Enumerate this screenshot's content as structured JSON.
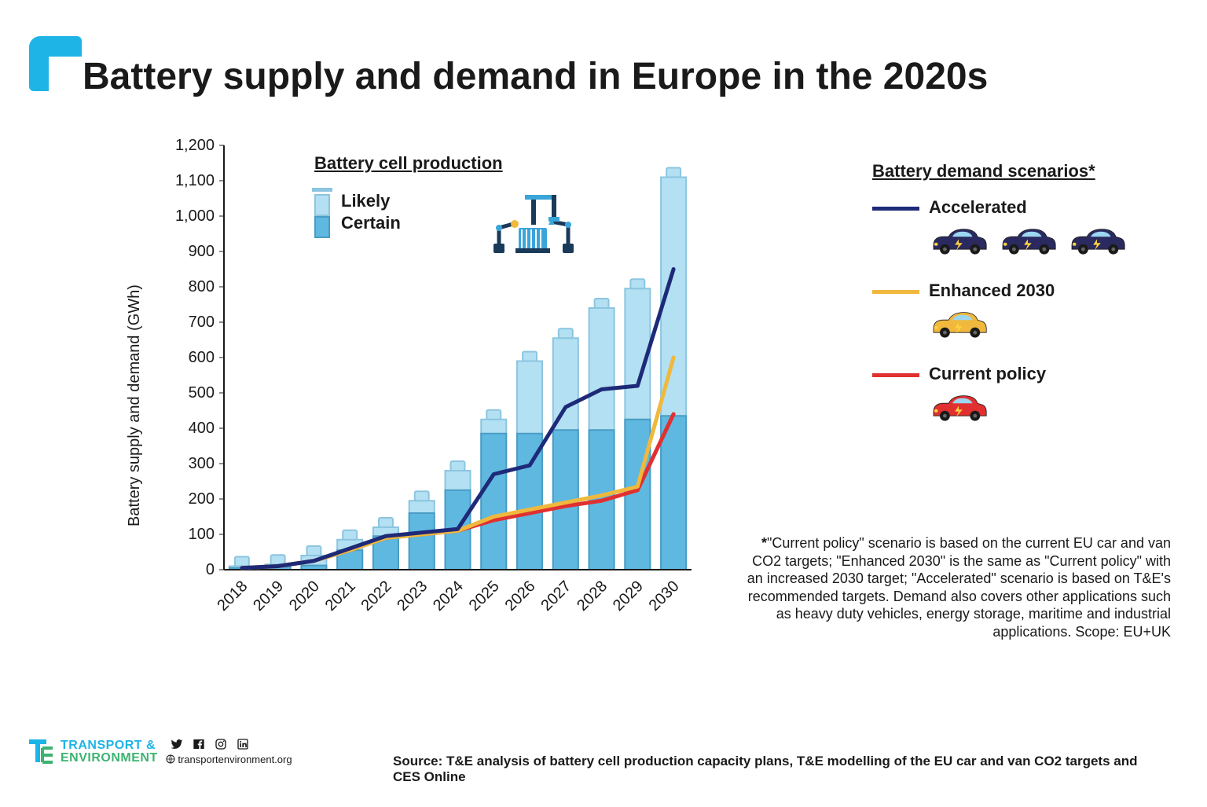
{
  "title": "Battery supply and demand in Europe in the 2020s",
  "chart": {
    "type": "bar+line",
    "ylabel": "Battery supply and demand (GWh)",
    "ylim": [
      0,
      1200
    ],
    "ytick_step": 100,
    "yticks_labels": [
      "0",
      "100",
      "200",
      "300",
      "400",
      "500",
      "600",
      "700",
      "800",
      "900",
      "1,000",
      "1,100",
      "1,200"
    ],
    "categories": [
      "2018",
      "2019",
      "2020",
      "2021",
      "2022",
      "2023",
      "2024",
      "2025",
      "2026",
      "2027",
      "2028",
      "2029",
      "2030"
    ],
    "bars": {
      "certain": {
        "color": "#5fb8e0",
        "border": "#4a9cc5",
        "values": [
          5,
          8,
          12,
          55,
          95,
          160,
          225,
          385,
          385,
          395,
          395,
          425,
          435
        ]
      },
      "likely": {
        "color": "#b3e0f2",
        "border": "#8cc5e0",
        "values": [
          10,
          15,
          40,
          85,
          120,
          195,
          280,
          425,
          590,
          655,
          740,
          795,
          1110
        ]
      },
      "cap_height": 20
    },
    "lines": {
      "accelerated": {
        "color": "#1e2a78",
        "width": 5,
        "values": [
          5,
          10,
          25,
          60,
          95,
          105,
          115,
          270,
          295,
          460,
          510,
          520,
          850
        ]
      },
      "enhanced2030": {
        "color": "#f0b83c",
        "width": 5,
        "values": [
          5,
          10,
          25,
          55,
          90,
          100,
          110,
          150,
          170,
          190,
          210,
          235,
          600
        ]
      },
      "current": {
        "color": "#e03030",
        "width": 5,
        "values": [
          5,
          10,
          25,
          55,
          90,
          100,
          110,
          140,
          160,
          180,
          195,
          225,
          440
        ]
      }
    },
    "bar_width": 0.7,
    "background_color": "#ffffff",
    "axis_color": "#1a1a1a",
    "tick_fontsize": 20,
    "label_fontsize": 20
  },
  "prod_legend": {
    "header": "Battery cell production",
    "items": [
      {
        "label": "Likely",
        "fill": "#b3e0f2",
        "border": "#8cc5e0"
      },
      {
        "label": "Certain",
        "fill": "#5fb8e0",
        "border": "#4a9cc5"
      }
    ]
  },
  "scenarios_legend": {
    "header": "Battery demand scenarios*",
    "items": [
      {
        "label": "Accelerated",
        "color": "#1e2a78",
        "car_count": 3,
        "car_fill": "#2a2a60"
      },
      {
        "label": "Enhanced 2030",
        "color": "#f0b83c",
        "car_count": 1,
        "car_fill": "#f0b83c"
      },
      {
        "label": "Current policy",
        "color": "#e03030",
        "car_count": 1,
        "car_fill": "#e03030"
      }
    ]
  },
  "footnote": {
    "lead": "*",
    "text": "\"Current policy\" scenario is based on the current EU car and van CO2 targets; \"Enhanced 2030\" is the same as \"Current policy\" with an increased 2030 target; \"Accelerated\" scenario is based on T&E's recommended targets. Demand also covers other applications such as heavy duty vehicles, energy storage, maritime and industrial applications. Scope: EU+UK"
  },
  "footer": {
    "brand_line1": "TRANSPORT &",
    "brand_line2": "ENVIRONMENT",
    "site": "transportenvironment.org",
    "source": "Source: T&E analysis of battery cell production capacity plans, T&E modelling of the EU car and van CO2 targets and CES Online"
  }
}
